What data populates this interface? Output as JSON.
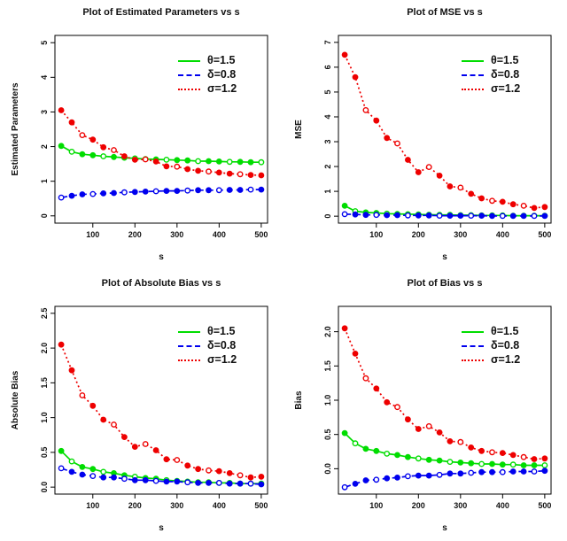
{
  "legend": {
    "items": [
      {
        "label": "θ=1.5",
        "color": "#00dd00",
        "style": "solid"
      },
      {
        "label": "δ=0.8",
        "color": "#0000ee",
        "style": "dashed"
      },
      {
        "label": "σ=1.2",
        "color": "#ee0000",
        "style": "dotted"
      }
    ]
  },
  "chart_data": [
    {
      "type": "line",
      "title": "Plot of Estimated Parameters vs s",
      "xlabel": "s",
      "ylabel": "Estimated Parameters",
      "grid": false,
      "legend_position": "top-right",
      "x": [
        25,
        50,
        75,
        100,
        125,
        150,
        175,
        200,
        225,
        250,
        275,
        300,
        325,
        350,
        375,
        400,
        425,
        450,
        475,
        500
      ],
      "xtick_values": [
        100,
        200,
        300,
        400,
        500
      ],
      "xtick_labels": [
        "100",
        "200",
        "300",
        "400",
        "500"
      ],
      "ytick_values": [
        0,
        1,
        2,
        3,
        4,
        5
      ],
      "ytick_labels": [
        "0",
        "1",
        "2",
        "3",
        "4",
        "5"
      ],
      "x_range": [
        10,
        515
      ],
      "y_range": [
        -0.21,
        5.21
      ],
      "series": [
        {
          "name": "θ=1.5",
          "color": "#00dd00",
          "dash": "solid",
          "values": [
            2.02,
            1.85,
            1.78,
            1.75,
            1.72,
            1.7,
            1.68,
            1.66,
            1.64,
            1.63,
            1.62,
            1.61,
            1.6,
            1.58,
            1.58,
            1.57,
            1.56,
            1.56,
            1.55,
            1.55
          ]
        },
        {
          "name": "δ=0.8",
          "color": "#0000ee",
          "dash": "dashed",
          "values": [
            0.53,
            0.58,
            0.62,
            0.63,
            0.65,
            0.66,
            0.68,
            0.69,
            0.7,
            0.71,
            0.72,
            0.72,
            0.73,
            0.74,
            0.74,
            0.74,
            0.75,
            0.75,
            0.76,
            0.76
          ]
        },
        {
          "name": "σ=1.2",
          "color": "#ee0000",
          "dash": "dotted",
          "values": [
            3.05,
            2.7,
            2.33,
            2.2,
            1.98,
            1.9,
            1.72,
            1.62,
            1.63,
            1.57,
            1.43,
            1.42,
            1.35,
            1.3,
            1.28,
            1.25,
            1.22,
            1.2,
            1.18,
            1.17
          ]
        }
      ]
    },
    {
      "type": "line",
      "title": "Plot of MSE vs s",
      "xlabel": "s",
      "ylabel": "MSE",
      "grid": false,
      "legend_position": "top-right",
      "x": [
        25,
        50,
        75,
        100,
        125,
        150,
        175,
        200,
        225,
        250,
        275,
        300,
        325,
        350,
        375,
        400,
        425,
        450,
        475,
        500
      ],
      "xtick_values": [
        100,
        200,
        300,
        400,
        500
      ],
      "xtick_labels": [
        "100",
        "200",
        "300",
        "400",
        "500"
      ],
      "ytick_values": [
        0,
        1,
        2,
        3,
        4,
        5,
        6,
        7
      ],
      "ytick_labels": [
        "0",
        "1",
        "2",
        "3",
        "4",
        "5",
        "6",
        "7"
      ],
      "x_range": [
        10,
        515
      ],
      "y_range": [
        -0.28,
        7.28
      ],
      "series": [
        {
          "name": "θ=1.5",
          "color": "#00dd00",
          "dash": "solid",
          "values": [
            0.42,
            0.2,
            0.15,
            0.13,
            0.1,
            0.09,
            0.08,
            0.07,
            0.06,
            0.05,
            0.05,
            0.04,
            0.04,
            0.03,
            0.03,
            0.03,
            0.02,
            0.02,
            0.02,
            0.02
          ]
        },
        {
          "name": "δ=0.8",
          "color": "#0000ee",
          "dash": "dashed",
          "values": [
            0.08,
            0.07,
            0.05,
            0.05,
            0.04,
            0.04,
            0.03,
            0.03,
            0.03,
            0.02,
            0.02,
            0.02,
            0.02,
            0.02,
            0.01,
            0.01,
            0.01,
            0.01,
            0.01,
            0.01
          ]
        },
        {
          "name": "σ=1.2",
          "color": "#ee0000",
          "dash": "dotted",
          "values": [
            6.5,
            5.6,
            4.27,
            3.85,
            3.15,
            2.93,
            2.27,
            1.77,
            1.98,
            1.63,
            1.2,
            1.15,
            0.9,
            0.72,
            0.62,
            0.58,
            0.48,
            0.42,
            0.33,
            0.37
          ]
        }
      ]
    },
    {
      "type": "line",
      "title": "Plot of Absolute Bias vs s",
      "xlabel": "s",
      "ylabel": "Absolute Bias",
      "grid": false,
      "legend_position": "top-right",
      "x": [
        25,
        50,
        75,
        100,
        125,
        150,
        175,
        200,
        225,
        250,
        275,
        300,
        325,
        350,
        375,
        400,
        425,
        450,
        475,
        500
      ],
      "xtick_values": [
        100,
        200,
        300,
        400,
        500
      ],
      "xtick_labels": [
        "100",
        "200",
        "300",
        "400",
        "500"
      ],
      "ytick_values": [
        0,
        0.5,
        1.0,
        1.5,
        2.0,
        2.5
      ],
      "ytick_labels": [
        "0.0",
        "0.5",
        "1.0",
        "1.5",
        "2.0",
        "2.5"
      ],
      "x_range": [
        10,
        515
      ],
      "y_range": [
        -0.1,
        2.6
      ],
      "series": [
        {
          "name": "θ=1.5",
          "color": "#00dd00",
          "dash": "solid",
          "values": [
            0.52,
            0.37,
            0.29,
            0.26,
            0.22,
            0.2,
            0.17,
            0.15,
            0.13,
            0.12,
            0.1,
            0.09,
            0.08,
            0.07,
            0.07,
            0.06,
            0.06,
            0.05,
            0.05,
            0.05
          ]
        },
        {
          "name": "δ=0.8",
          "color": "#0000ee",
          "dash": "dashed",
          "values": [
            0.27,
            0.22,
            0.18,
            0.16,
            0.14,
            0.14,
            0.12,
            0.1,
            0.1,
            0.09,
            0.08,
            0.08,
            0.07,
            0.06,
            0.06,
            0.06,
            0.05,
            0.05,
            0.05,
            0.04
          ]
        },
        {
          "name": "σ=1.2",
          "color": "#ee0000",
          "dash": "dotted",
          "values": [
            2.05,
            1.68,
            1.32,
            1.17,
            0.97,
            0.9,
            0.72,
            0.58,
            0.62,
            0.53,
            0.4,
            0.39,
            0.31,
            0.26,
            0.24,
            0.23,
            0.2,
            0.17,
            0.14,
            0.15
          ]
        }
      ]
    },
    {
      "type": "line",
      "title": "Plot of Bias vs s",
      "xlabel": "s",
      "ylabel": "Bias",
      "grid": false,
      "legend_position": "top-right",
      "x": [
        25,
        50,
        75,
        100,
        125,
        150,
        175,
        200,
        225,
        250,
        275,
        300,
        325,
        350,
        375,
        400,
        425,
        450,
        475,
        500
      ],
      "xtick_values": [
        100,
        200,
        300,
        400,
        500
      ],
      "xtick_labels": [
        "100",
        "200",
        "300",
        "400",
        "500"
      ],
      "ytick_values": [
        0,
        0.5,
        1.0,
        1.5,
        2.0
      ],
      "ytick_labels": [
        "0.0",
        "0.5",
        "1.0",
        "1.5",
        "2.0"
      ],
      "x_range": [
        10,
        515
      ],
      "y_range": [
        -0.37,
        2.37
      ],
      "series": [
        {
          "name": "θ=1.5",
          "color": "#00dd00",
          "dash": "solid",
          "values": [
            0.52,
            0.37,
            0.29,
            0.26,
            0.22,
            0.2,
            0.17,
            0.15,
            0.13,
            0.12,
            0.1,
            0.09,
            0.08,
            0.07,
            0.07,
            0.06,
            0.06,
            0.05,
            0.05,
            0.05
          ]
        },
        {
          "name": "δ=0.8",
          "color": "#0000ee",
          "dash": "dashed",
          "values": [
            -0.27,
            -0.22,
            -0.17,
            -0.16,
            -0.14,
            -0.13,
            -0.11,
            -0.1,
            -0.1,
            -0.09,
            -0.07,
            -0.07,
            -0.06,
            -0.05,
            -0.05,
            -0.05,
            -0.04,
            -0.04,
            -0.04,
            -0.03
          ]
        },
        {
          "name": "σ=1.2",
          "color": "#ee0000",
          "dash": "dotted",
          "values": [
            2.05,
            1.68,
            1.32,
            1.17,
            0.97,
            0.9,
            0.72,
            0.58,
            0.62,
            0.53,
            0.4,
            0.39,
            0.31,
            0.26,
            0.24,
            0.23,
            0.2,
            0.17,
            0.14,
            0.15
          ]
        }
      ]
    }
  ]
}
